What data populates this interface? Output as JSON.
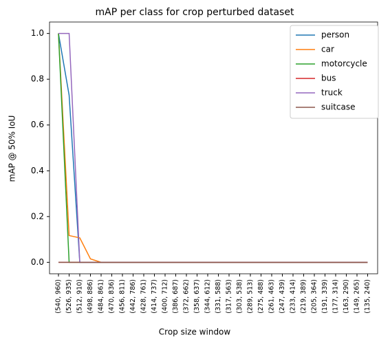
{
  "chart_data": {
    "type": "line",
    "title": "mAP per class for crop perturbed dataset",
    "x_label": "Crop size window",
    "y_label": "mAP @ 50% IoU",
    "categories": [
      "(540, 960)",
      "(526, 935)",
      "(512, 910)",
      "(498, 886)",
      "(484, 861)",
      "(470, 836)",
      "(456, 811)",
      "(442, 786)",
      "(428, 761)",
      "(414, 737)",
      "(400, 712)",
      "(386, 687)",
      "(372, 662)",
      "(358, 637)",
      "(344, 612)",
      "(331, 588)",
      "(317, 563)",
      "(303, 538)",
      "(289, 513)",
      "(275, 488)",
      "(261, 463)",
      "(247, 439)",
      "(233, 414)",
      "(219, 389)",
      "(205, 364)",
      "(191, 339)",
      "(177, 314)",
      "(163, 290)",
      "(149, 265)",
      "(135, 240)"
    ],
    "series": [
      {
        "name": "person",
        "color": "#1f77b4",
        "values": [
          1.0,
          0.73,
          0,
          0,
          0,
          0,
          0,
          0,
          0,
          0,
          0,
          0,
          0,
          0,
          0,
          0,
          0,
          0,
          0,
          0,
          0,
          0,
          0,
          0,
          0,
          0,
          0,
          0,
          0,
          0
        ]
      },
      {
        "name": "car",
        "color": "#ff7f0e",
        "values": [
          1.0,
          0.117,
          0.107,
          0.015,
          0,
          0,
          0,
          0,
          0,
          0,
          0,
          0,
          0,
          0,
          0,
          0,
          0,
          0,
          0,
          0,
          0,
          0,
          0,
          0,
          0,
          0,
          0,
          0,
          0,
          0
        ]
      },
      {
        "name": "motorcycle",
        "color": "#2ca02c",
        "values": [
          1.0,
          0,
          0,
          0,
          0,
          0,
          0,
          0,
          0,
          0,
          0,
          0,
          0,
          0,
          0,
          0,
          0,
          0,
          0,
          0,
          0,
          0,
          0,
          0,
          0,
          0,
          0,
          0,
          0,
          0
        ]
      },
      {
        "name": "bus",
        "color": "#d62728",
        "values": [
          0,
          0,
          0,
          0,
          0,
          0,
          0,
          0,
          0,
          0,
          0,
          0,
          0,
          0,
          0,
          0,
          0,
          0,
          0,
          0,
          0,
          0,
          0,
          0,
          0,
          0,
          0,
          0,
          0,
          0
        ]
      },
      {
        "name": "truck",
        "color": "#9467bd",
        "values": [
          1.0,
          1.0,
          0,
          0,
          0,
          0,
          0,
          0,
          0,
          0,
          0,
          0,
          0,
          0,
          0,
          0,
          0,
          0,
          0,
          0,
          0,
          0,
          0,
          0,
          0,
          0,
          0,
          0,
          0,
          0
        ]
      },
      {
        "name": "suitcase",
        "color": "#8c564b",
        "values": [
          0,
          0,
          0,
          0,
          0,
          0,
          0,
          0,
          0,
          0,
          0,
          0,
          0,
          0,
          0,
          0,
          0,
          0,
          0,
          0,
          0,
          0,
          0,
          0,
          0,
          0,
          0,
          0,
          0,
          0
        ]
      }
    ],
    "ylim": [
      -0.05,
      1.05
    ],
    "yticks": [
      {
        "value": 0,
        "label": "0.0"
      },
      {
        "value": 0.2,
        "label": "0.2"
      },
      {
        "value": 0.4,
        "label": "0.4"
      },
      {
        "value": 0.6,
        "label": "0.6"
      },
      {
        "value": 0.8,
        "label": "0.8"
      },
      {
        "value": 1,
        "label": "1.0"
      }
    ],
    "legend": "upper right"
  }
}
